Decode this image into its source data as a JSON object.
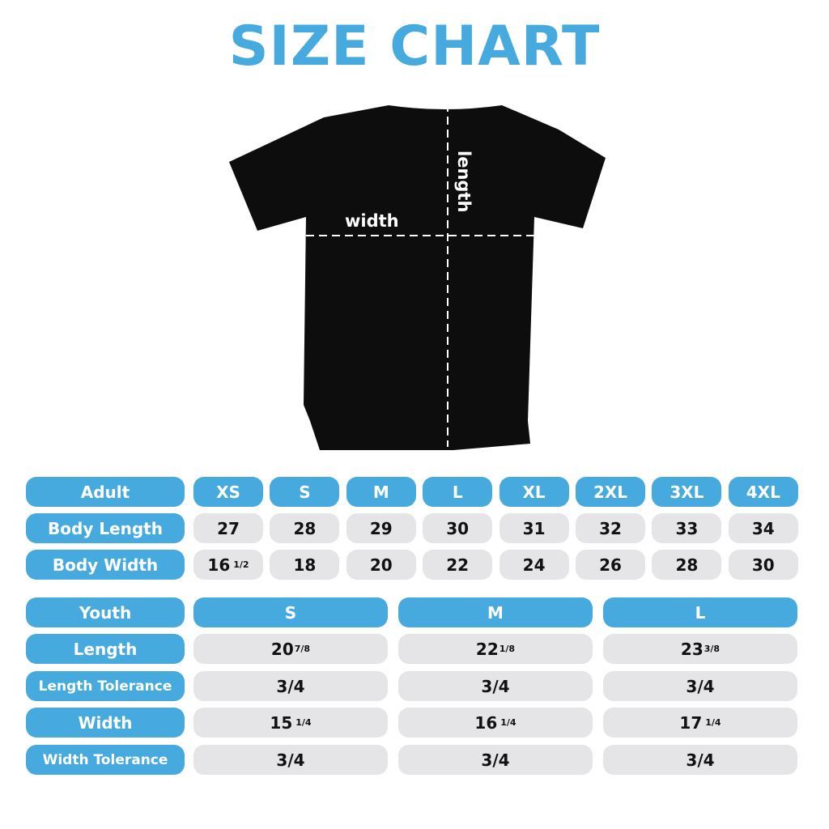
{
  "title": "SIZE CHART",
  "colors": {
    "accent": "#46aadf",
    "cell": "#e5e5e7",
    "shirt": "#0d0d0d"
  },
  "shirt": {
    "width_label": "width",
    "length_label": "length"
  },
  "adult": {
    "header": "Adult",
    "sizes": [
      "XS",
      "S",
      "M",
      "L",
      "XL",
      "2XL",
      "3XL",
      "4XL"
    ],
    "rows": [
      {
        "label": "Body Length",
        "values": [
          {
            "w": "27",
            "f": ""
          },
          {
            "w": "28",
            "f": ""
          },
          {
            "w": "29",
            "f": ""
          },
          {
            "w": "30",
            "f": ""
          },
          {
            "w": "31",
            "f": ""
          },
          {
            "w": "32",
            "f": ""
          },
          {
            "w": "33",
            "f": ""
          },
          {
            "w": "34",
            "f": ""
          }
        ]
      },
      {
        "label": "Body Width",
        "values": [
          {
            "w": "16",
            "f": "1/2"
          },
          {
            "w": "18",
            "f": ""
          },
          {
            "w": "20",
            "f": ""
          },
          {
            "w": "22",
            "f": ""
          },
          {
            "w": "24",
            "f": ""
          },
          {
            "w": "26",
            "f": ""
          },
          {
            "w": "28",
            "f": ""
          },
          {
            "w": "30",
            "f": ""
          }
        ]
      }
    ]
  },
  "youth": {
    "header": "Youth",
    "sizes": [
      "S",
      "M",
      "L"
    ],
    "rows": [
      {
        "label": "Length",
        "values": [
          {
            "w": "20",
            "f": "7/8"
          },
          {
            "w": "22",
            "f": "1/8"
          },
          {
            "w": "23",
            "f": "3/8"
          }
        ]
      },
      {
        "label": "Length Tolerance",
        "values": [
          {
            "w": "3/4",
            "f": ""
          },
          {
            "w": "3/4",
            "f": ""
          },
          {
            "w": "3/4",
            "f": ""
          }
        ]
      },
      {
        "label": "Width",
        "values": [
          {
            "w": "15",
            "f": "1/4"
          },
          {
            "w": "16",
            "f": "1/4"
          },
          {
            "w": "17",
            "f": "1/4"
          }
        ]
      },
      {
        "label": "Width Tolerance",
        "values": [
          {
            "w": "3/4",
            "f": ""
          },
          {
            "w": "3/4",
            "f": ""
          },
          {
            "w": "3/4",
            "f": ""
          }
        ]
      }
    ]
  }
}
